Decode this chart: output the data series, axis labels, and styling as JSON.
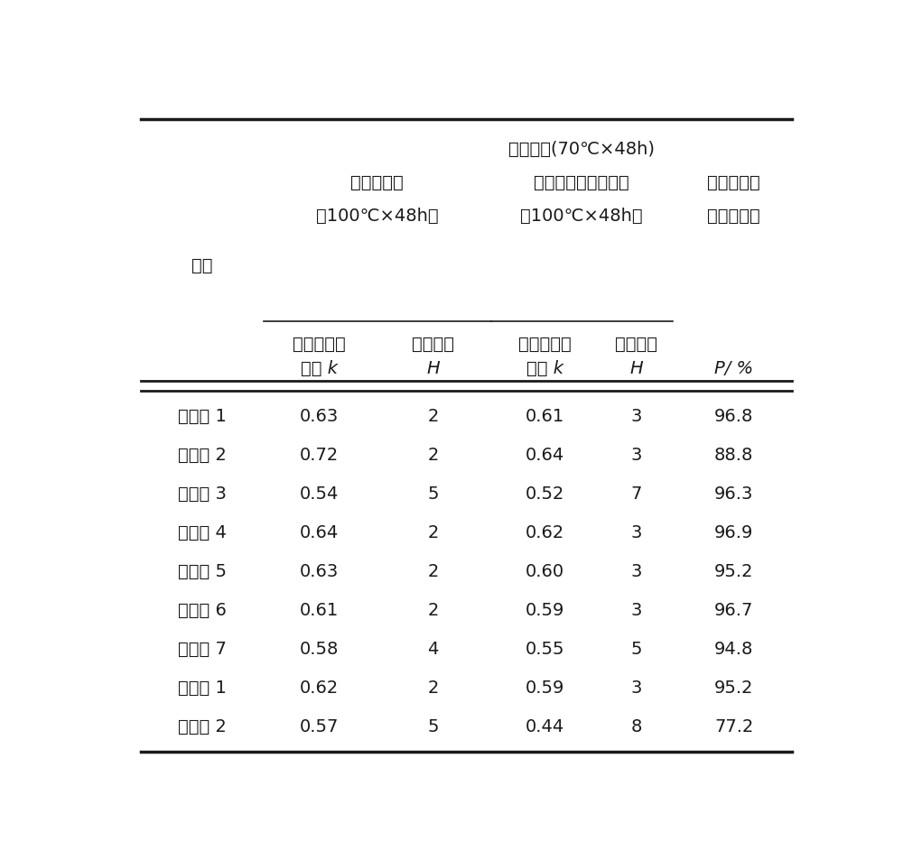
{
  "rows": [
    [
      "实施例 1",
      "0.63",
      "2",
      "0.61",
      "3",
      "96.8"
    ],
    [
      "实施例 2",
      "0.72",
      "2",
      "0.64",
      "3",
      "88.8"
    ],
    [
      "实施例 3",
      "0.54",
      "5",
      "0.52",
      "7",
      "96.3"
    ],
    [
      "实施例 4",
      "0.64",
      "2",
      "0.62",
      "3",
      "96.9"
    ],
    [
      "实施例 5",
      "0.63",
      "2",
      "0.60",
      "3",
      "95.2"
    ],
    [
      "实施例 6",
      "0.61",
      "2",
      "0.59",
      "3",
      "96.7"
    ],
    [
      "实施例 7",
      "0.58",
      "4",
      "0.55",
      "5",
      "94.8"
    ],
    [
      "比较例 1",
      "0.62",
      "2",
      "0.59",
      "3",
      "95.2"
    ],
    [
      "比较例 2",
      "0.57",
      "5",
      "0.44",
      "8",
      "77.2"
    ]
  ],
  "col1_header_line1": "热空气老化",
  "col1_header_line2": "（100℃×48h）",
  "col2_header_line1": "热水浸泡(70℃×48h)",
  "col2_header_line2": "后再进行热空气老化",
  "col2_header_line3": "（100℃×48h）",
  "col3_header_line1": "抗张积老化",
  "col3_header_line2": "系数保持率",
  "row_header": "试样",
  "sub_col1_line1": "抗张积老化",
  "sub_col1_line2": "系数 k",
  "sub_col2_line1": "硬度变化",
  "sub_col2_line2": "H",
  "sub_col3_line1": "抗张积老化",
  "sub_col3_line2": "系数 k",
  "sub_col4_line1": "硬度变化",
  "sub_col4_line2": "H",
  "sub_col5_line1": "P/ %",
  "background_color": "#ffffff",
  "text_color": "#1a1a1a",
  "line_color": "#1a1a1a",
  "fig_width": 10.0,
  "fig_height": 9.54,
  "dpi": 100
}
